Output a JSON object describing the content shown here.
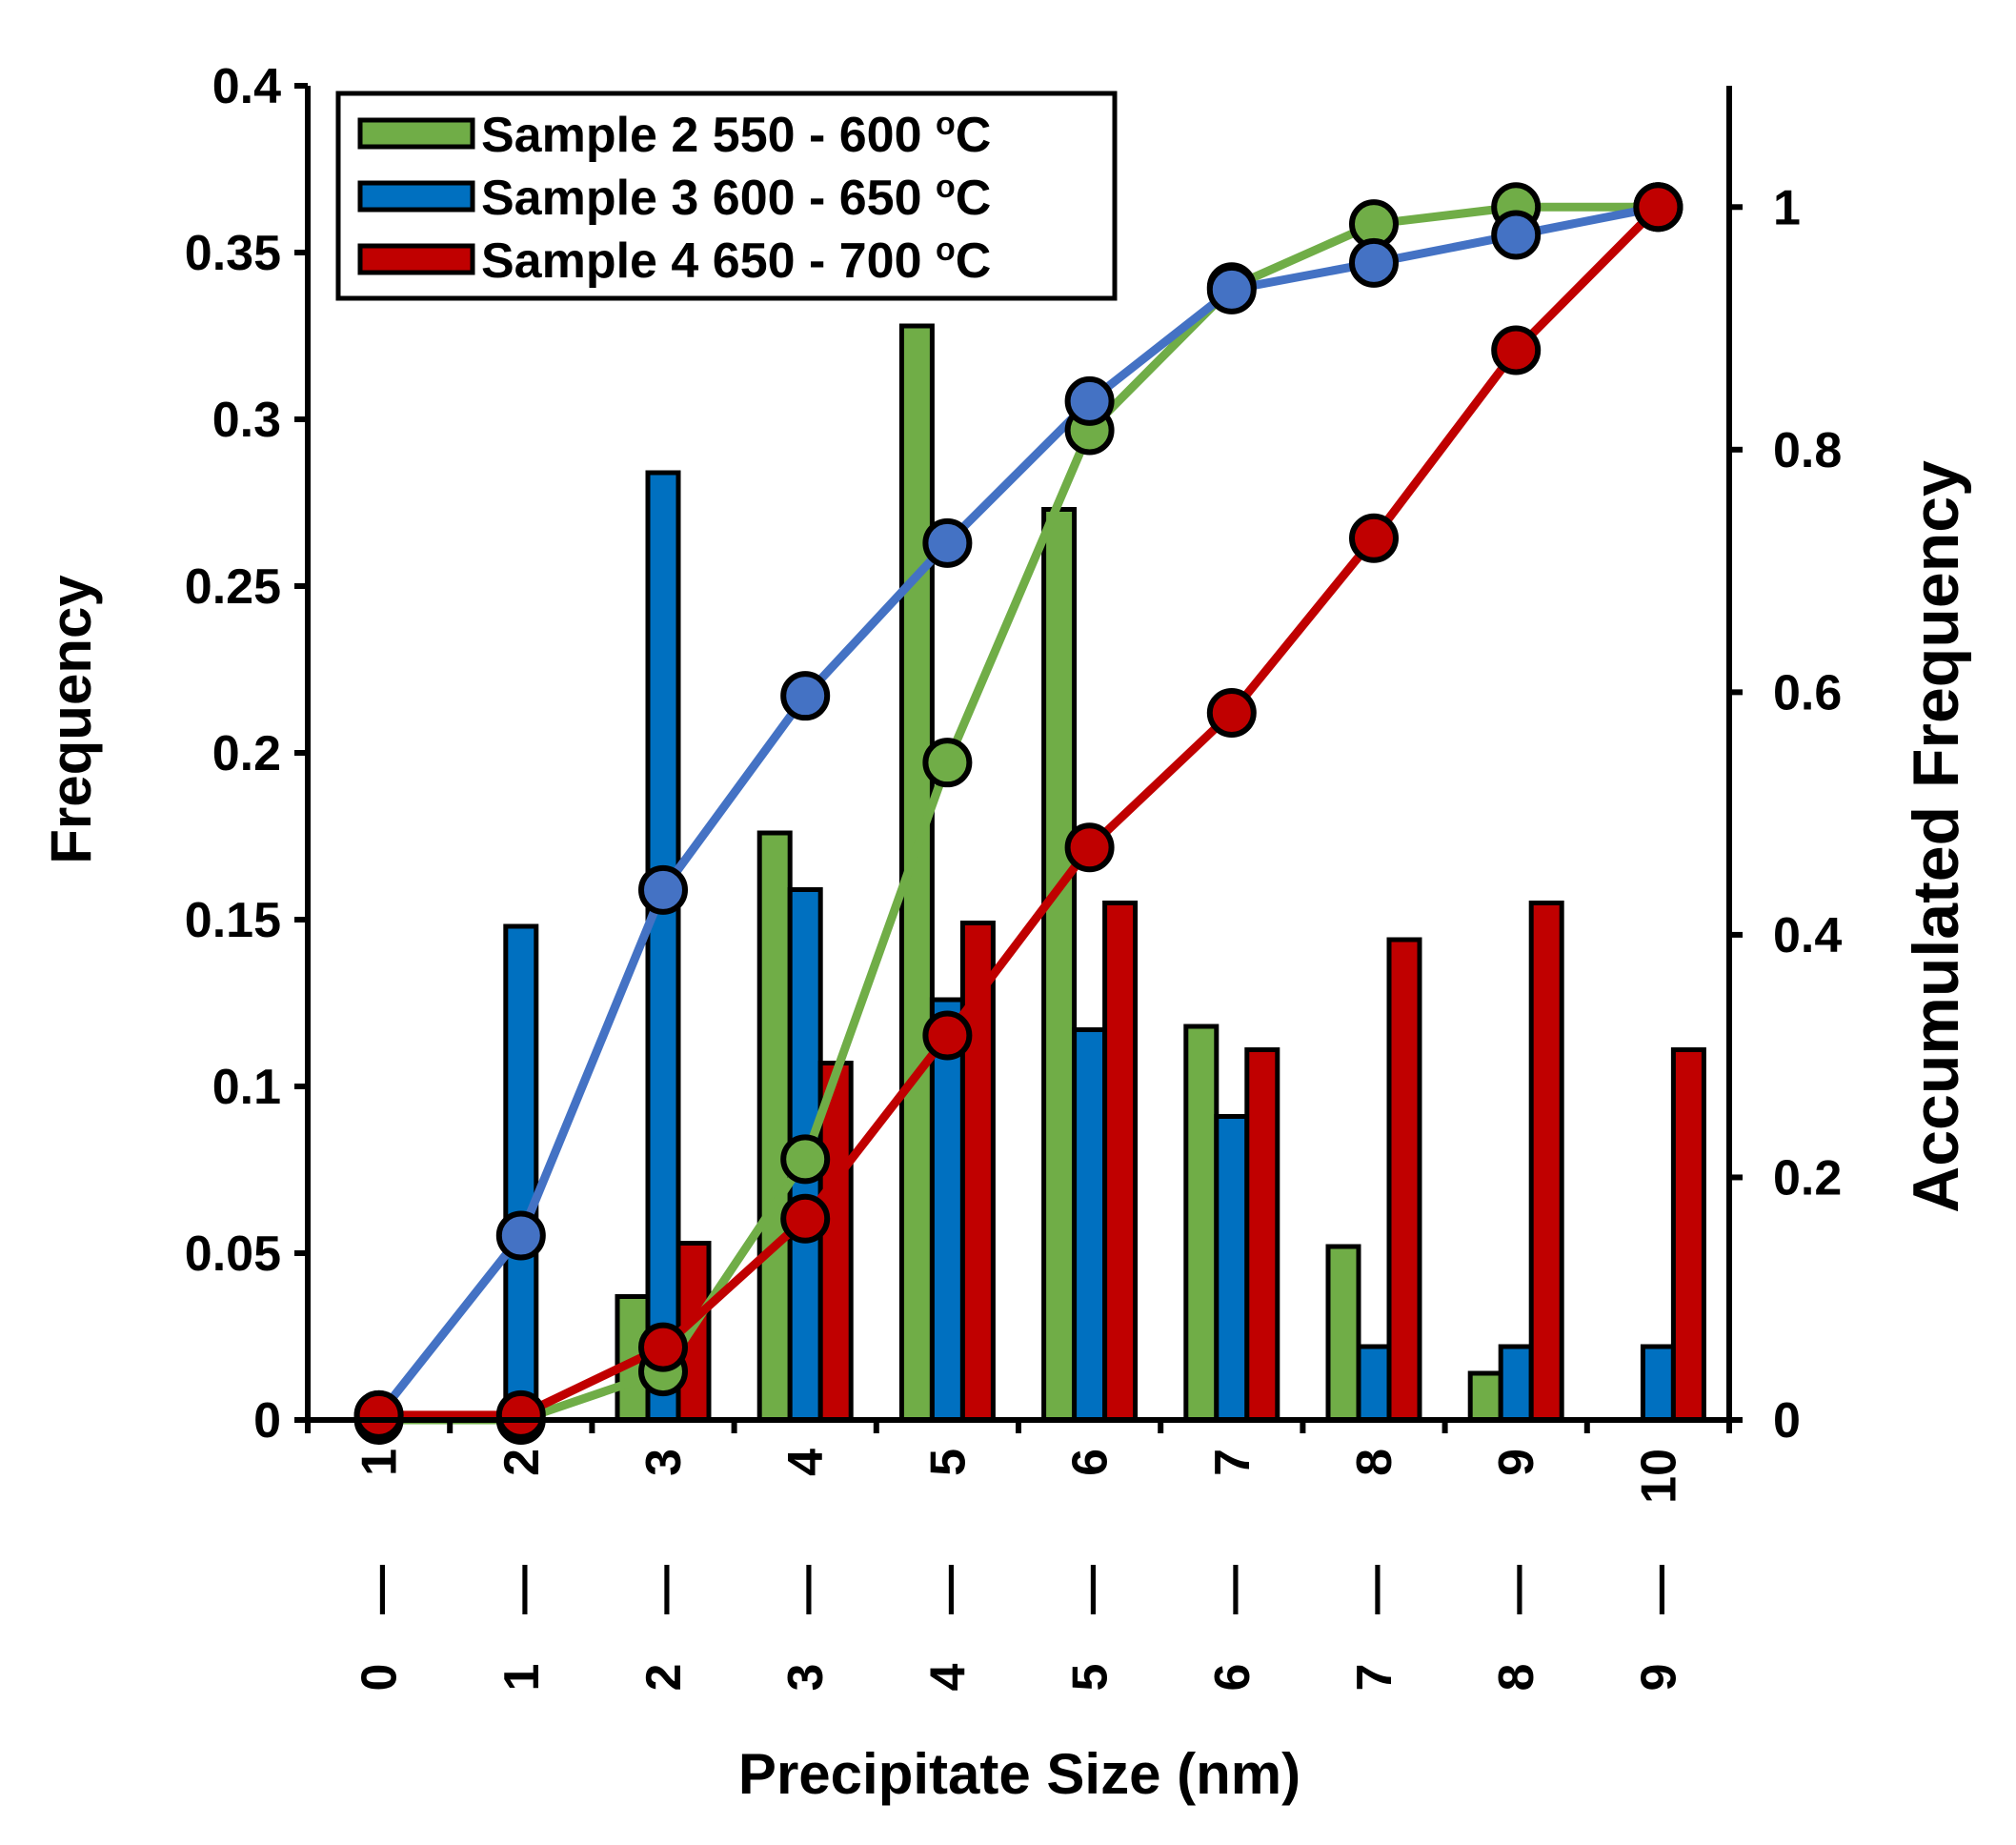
{
  "chart_data": {
    "type": "bar+line",
    "xlabel": "Precipitate Size (nm)",
    "ylabel": "Frequency",
    "y2label": "Accumulated Frequency",
    "ylim": [
      0,
      0.4
    ],
    "y2lim": [
      0,
      1.1
    ],
    "yticks": [
      "0",
      "0.05",
      "0.1",
      "0.15",
      "0.2",
      "0.25",
      "0.3",
      "0.35",
      "0.4"
    ],
    "y2ticks": [
      "0",
      "0.2",
      "0.4",
      "0.6",
      "0.8",
      "1"
    ],
    "categories": [
      {
        "low": "0",
        "dash": "—",
        "high": "1"
      },
      {
        "low": "1",
        "dash": "—",
        "high": "2"
      },
      {
        "low": "2",
        "dash": "—",
        "high": "3"
      },
      {
        "low": "3",
        "dash": "—",
        "high": "4"
      },
      {
        "low": "4",
        "dash": "—",
        "high": "5"
      },
      {
        "low": "5",
        "dash": "—",
        "high": "6"
      },
      {
        "low": "6",
        "dash": "—",
        "high": "7"
      },
      {
        "low": "7",
        "dash": "—",
        "high": "8"
      },
      {
        "low": "8",
        "dash": "—",
        "high": "9"
      },
      {
        "low": "9",
        "dash": "—",
        "high": "10"
      }
    ],
    "legend_position": "top-left",
    "series": [
      {
        "name": "Sample 2 550 - 600 ",
        "sup": "o",
        "unit": "C",
        "bar_color": "#70AD47",
        "line_color": "#70AD47",
        "marker_color": "#70AD47",
        "frequency": [
          0.0,
          0.0,
          0.037,
          0.176,
          0.328,
          0.273,
          0.118,
          0.052,
          0.014,
          0.0
        ],
        "accumulated": [
          0.0,
          0.0,
          0.04,
          0.215,
          0.542,
          0.816,
          0.934,
          0.986,
          1.0,
          1.0
        ]
      },
      {
        "name": "Sample 3 600 - 650 ",
        "sup": "o",
        "unit": "C",
        "bar_color": "#0070C0",
        "line_color": "#4472C4",
        "marker_color": "#4472C4",
        "frequency": [
          0.004,
          0.148,
          0.284,
          0.159,
          0.126,
          0.117,
          0.091,
          0.022,
          0.022,
          0.022
        ],
        "accumulated": [
          0.004,
          0.152,
          0.437,
          0.597,
          0.723,
          0.84,
          0.932,
          0.954,
          0.977,
          1.0
        ]
      },
      {
        "name": "Sample 4 650 - 700 ",
        "sup": "o",
        "unit": "C",
        "bar_color": "#C00000",
        "line_color": "#C00000",
        "marker_color": "#C00000",
        "frequency": [
          0.0,
          0.0,
          0.053,
          0.107,
          0.149,
          0.155,
          0.111,
          0.144,
          0.155,
          0.111
        ],
        "accumulated": [
          0.004,
          0.004,
          0.06,
          0.166,
          0.317,
          0.472,
          0.583,
          0.727,
          0.882,
          1.0
        ]
      }
    ]
  }
}
